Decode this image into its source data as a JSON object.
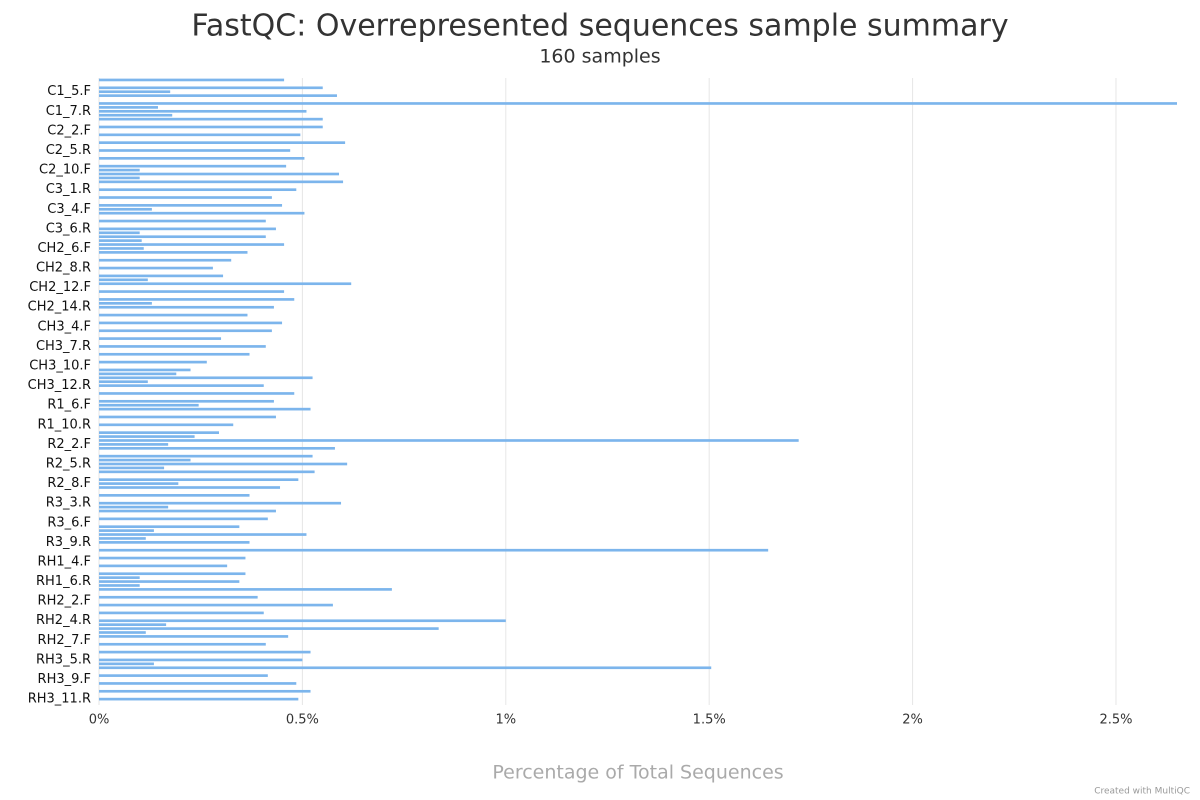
{
  "chart_data": {
    "type": "hbar",
    "title": "FastQC: Overrepresented sequences sample summary",
    "subtitle": "160 samples",
    "x_label": "Percentage of Total Sequences",
    "credit": "Created with MultiQC",
    "color": "#7cb5ec",
    "grid": true,
    "xlim": [
      0,
      2.65
    ],
    "xticks": [
      {
        "value": 0,
        "label": "0%"
      },
      {
        "value": 0.5,
        "label": "0.5%"
      },
      {
        "value": 1,
        "label": "1%"
      },
      {
        "value": 1.5,
        "label": "1.5%"
      },
      {
        "value": 2,
        "label": "2%"
      },
      {
        "value": 2.5,
        "label": "2.5%"
      }
    ],
    "categories": [
      null,
      null,
      null,
      "C1_5.F",
      null,
      null,
      null,
      null,
      "C1_7.R",
      null,
      null,
      null,
      null,
      "C2_2.F",
      null,
      null,
      null,
      null,
      "C2_5.R",
      null,
      null,
      null,
      null,
      "C2_10.F",
      null,
      null,
      null,
      null,
      "C3_1.R",
      null,
      null,
      null,
      null,
      "C3_4.F",
      null,
      null,
      null,
      null,
      "C3_6.R",
      null,
      null,
      null,
      null,
      "CH2_6.F",
      null,
      null,
      null,
      null,
      "CH2_8.R",
      null,
      null,
      null,
      null,
      "CH2_12.F",
      null,
      null,
      null,
      null,
      "CH2_14.R",
      null,
      null,
      null,
      null,
      "CH3_4.F",
      null,
      null,
      null,
      null,
      "CH3_7.R",
      null,
      null,
      null,
      null,
      "CH3_10.F",
      null,
      null,
      null,
      null,
      "CH3_12.R",
      null,
      null,
      null,
      null,
      "R1_6.F",
      null,
      null,
      null,
      null,
      "R1_10.R",
      null,
      null,
      null,
      null,
      "R2_2.F",
      null,
      null,
      null,
      null,
      "R2_5.R",
      null,
      null,
      null,
      null,
      "R2_8.F",
      null,
      null,
      null,
      null,
      "R3_3.R",
      null,
      null,
      null,
      null,
      "R3_6.F",
      null,
      null,
      null,
      null,
      "R3_9.R",
      null,
      null,
      null,
      null,
      "RH1_4.F",
      null,
      null,
      null,
      null,
      "RH1_6.R",
      null,
      null,
      null,
      null,
      "RH2_2.F",
      null,
      null,
      null,
      null,
      "RH2_4.R",
      null,
      null,
      null,
      null,
      "RH2_7.F",
      null,
      null,
      null,
      null,
      "RH3_5.R",
      null,
      null,
      null,
      null,
      "RH3_9.F",
      null,
      null,
      null,
      null,
      "RH3_11.R",
      null
    ],
    "values": [
      0.455,
      0,
      0.55,
      0.175,
      0.585,
      0,
      2.65,
      0.145,
      0.51,
      0.18,
      0.55,
      0,
      0.55,
      0,
      0.495,
      0,
      0.605,
      0,
      0.47,
      0,
      0.505,
      0,
      0.46,
      0.1,
      0.59,
      0.1,
      0.6,
      0,
      0.485,
      0,
      0.425,
      0,
      0.45,
      0.13,
      0.505,
      0,
      0.41,
      0,
      0.435,
      0.1,
      0.41,
      0.105,
      0.455,
      0.11,
      0.365,
      0,
      0.325,
      0,
      0.28,
      0,
      0.305,
      0.12,
      0.62,
      0,
      0.455,
      0,
      0.48,
      0.13,
      0.43,
      0,
      0.365,
      0,
      0.45,
      0,
      0.425,
      0,
      0.3,
      0,
      0.41,
      0,
      0.37,
      0,
      0.265,
      0,
      0.225,
      0.19,
      0.525,
      0.12,
      0.405,
      0,
      0.48,
      0,
      0.43,
      0.245,
      0.52,
      0,
      0.435,
      0,
      0.33,
      0,
      0.295,
      0.235,
      1.72,
      0.17,
      0.58,
      0,
      0.525,
      0.225,
      0.61,
      0.16,
      0.53,
      0,
      0.49,
      0.195,
      0.445,
      0,
      0.37,
      0,
      0.595,
      0.17,
      0.435,
      0,
      0.415,
      0,
      0.345,
      0.135,
      0.51,
      0.115,
      0.37,
      0,
      1.645,
      0,
      0.36,
      0,
      0.315,
      0,
      0.36,
      0.1,
      0.345,
      0.1,
      0.72,
      0,
      0.39,
      0,
      0.575,
      0,
      0.405,
      0,
      1.0,
      0.165,
      0.835,
      0.115,
      0.465,
      0,
      0.41,
      0,
      0.52,
      0,
      0.5,
      0.135,
      1.505,
      0,
      0.415,
      0,
      0.485,
      0,
      0.52,
      0,
      0.49,
      0
    ]
  }
}
